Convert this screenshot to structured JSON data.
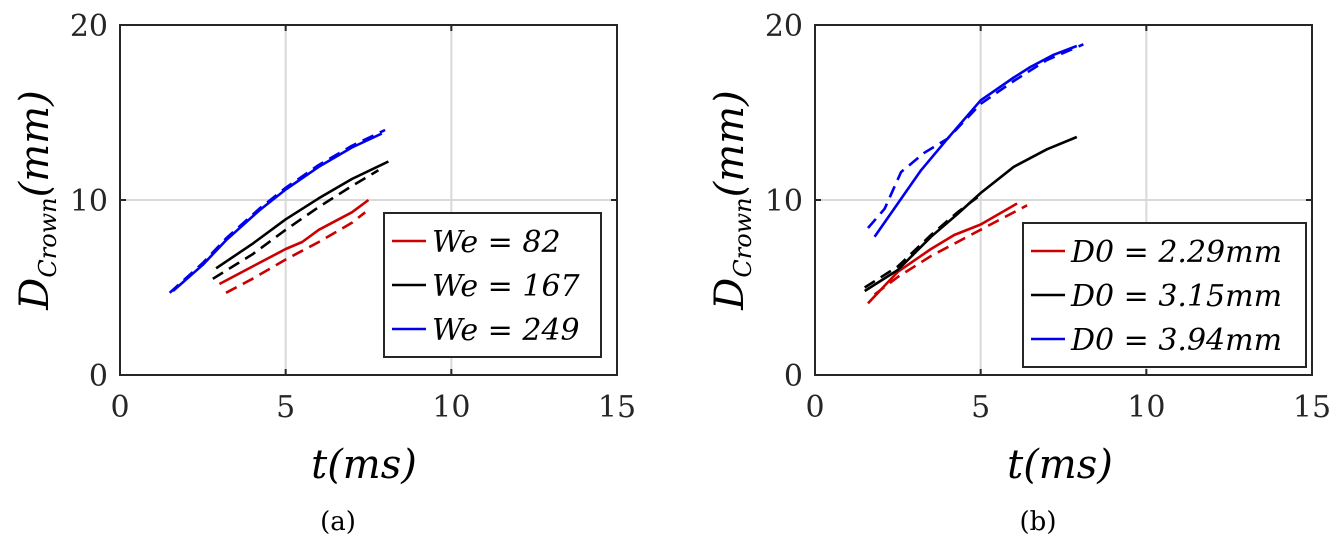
{
  "chart_data": [
    {
      "type": "line",
      "caption": "(a)",
      "xlabel": "t(ms)",
      "ylabel_main": "D",
      "ylabel_sub": "Crown",
      "ylabel_unit": "(mm)",
      "xlim": [
        0,
        15
      ],
      "ylim": [
        0,
        20
      ],
      "xticks": [
        "0",
        "5",
        "10",
        "15"
      ],
      "yticks": [
        "0",
        "10",
        "20"
      ],
      "grid": true,
      "legend_position": "lower-right",
      "series": [
        {
          "name": "We = 82",
          "color": "#cc0000",
          "style": "solid",
          "x": [
            3.0,
            4.0,
            5.0,
            5.5,
            6.0,
            7.0,
            7.5
          ],
          "y": [
            5.2,
            6.2,
            7.2,
            7.6,
            8.3,
            9.3,
            10.0
          ]
        },
        {
          "name": "We = 82 (dashed)",
          "color": "#cc0000",
          "style": "dashed",
          "legend": false,
          "x": [
            3.2,
            4.0,
            5.0,
            6.0,
            7.0,
            7.4
          ],
          "y": [
            4.7,
            5.5,
            6.6,
            7.6,
            8.7,
            9.3
          ]
        },
        {
          "name": "We = 167",
          "color": "#000000",
          "style": "solid",
          "x": [
            2.9,
            4.0,
            5.0,
            6.0,
            7.0,
            8.1
          ],
          "y": [
            6.1,
            7.5,
            8.9,
            10.1,
            11.2,
            12.2
          ]
        },
        {
          "name": "We = 167 (dashed)",
          "color": "#000000",
          "style": "dashed",
          "legend": false,
          "x": [
            2.8,
            4.0,
            5.0,
            6.0,
            7.0,
            7.8
          ],
          "y": [
            5.5,
            6.9,
            8.3,
            9.6,
            10.8,
            11.7
          ]
        },
        {
          "name": "We = 249",
          "color": "#0000ee",
          "style": "solid",
          "x": [
            1.6,
            2.5,
            3.2,
            4.2,
            5.0,
            6.0,
            7.0,
            7.9
          ],
          "y": [
            4.8,
            6.3,
            7.7,
            9.4,
            10.6,
            11.9,
            13.0,
            13.8
          ]
        },
        {
          "name": "We = 249 (dashed)",
          "color": "#0000ee",
          "style": "dashed",
          "legend": false,
          "x": [
            1.5,
            2.5,
            3.2,
            4.2,
            5.0,
            6.0,
            7.0,
            8.0
          ],
          "y": [
            4.7,
            6.4,
            7.8,
            9.5,
            10.7,
            12.0,
            13.1,
            14.0
          ]
        }
      ],
      "legend": [
        {
          "label": "We = 82",
          "color": "#cc0000"
        },
        {
          "label": "We = 167",
          "color": "#000000"
        },
        {
          "label": "We = 249",
          "color": "#0000ee"
        }
      ]
    },
    {
      "type": "line",
      "caption": "(b)",
      "xlabel": "t(ms)",
      "ylabel_main": "D",
      "ylabel_sub": "Crown",
      "ylabel_unit": "(mm)",
      "xlim": [
        0,
        15
      ],
      "ylim": [
        0,
        20
      ],
      "xticks": [
        "0",
        "5",
        "10",
        "15"
      ],
      "yticks": [
        "0",
        "10",
        "20"
      ],
      "grid": true,
      "legend_position": "lower-right",
      "series": [
        {
          "name": "D0 = 2.29mm",
          "color": "#cc0000",
          "style": "solid",
          "x": [
            1.6,
            2.5,
            3.5,
            4.2,
            5.0,
            6.1
          ],
          "y": [
            4.1,
            5.9,
            7.2,
            8.0,
            8.6,
            9.8
          ]
        },
        {
          "name": "D0 = 2.29mm (dashed)",
          "color": "#cc0000",
          "style": "dashed",
          "legend": false,
          "x": [
            1.8,
            2.5,
            3.5,
            4.5,
            5.5,
            6.4
          ],
          "y": [
            4.6,
            5.6,
            6.8,
            7.8,
            8.8,
            9.7
          ]
        },
        {
          "name": "D0 = 3.15mm",
          "color": "#000000",
          "style": "solid",
          "x": [
            1.5,
            2.5,
            3.5,
            4.3,
            5.0,
            6.0,
            7.0,
            7.9
          ],
          "y": [
            4.8,
            6.0,
            7.9,
            9.2,
            10.4,
            11.9,
            12.9,
            13.6
          ]
        },
        {
          "name": "D0 = 3.15mm (dashed)",
          "color": "#000000",
          "style": "dashed",
          "legend": false,
          "x": [
            1.5,
            2.5,
            3.5,
            4.3,
            5.0
          ],
          "y": [
            5.0,
            6.2,
            8.0,
            9.3,
            10.3
          ]
        },
        {
          "name": "D0 = 3.94mm",
          "color": "#0000ee",
          "style": "solid",
          "x": [
            1.8,
            2.5,
            3.2,
            4.0,
            5.0,
            6.0,
            6.5,
            7.2,
            7.9
          ],
          "y": [
            7.9,
            9.8,
            11.7,
            13.5,
            15.7,
            17.0,
            17.6,
            18.3,
            18.8
          ]
        },
        {
          "name": "D0 = 3.94mm (dashed)",
          "color": "#0000ee",
          "style": "dashed",
          "legend": false,
          "x": [
            1.6,
            2.1,
            2.6,
            3.3,
            4.0,
            5.0,
            6.0,
            7.0,
            8.1
          ],
          "y": [
            8.4,
            9.5,
            11.6,
            12.7,
            13.5,
            15.5,
            16.8,
            18.0,
            18.9
          ]
        }
      ],
      "legend": [
        {
          "label": "D0 = 2.29mm",
          "color": "#cc0000"
        },
        {
          "label": "D0 = 3.15mm",
          "color": "#000000"
        },
        {
          "label": "D0 = 3.94mm",
          "color": "#0000ee"
        }
      ]
    }
  ]
}
